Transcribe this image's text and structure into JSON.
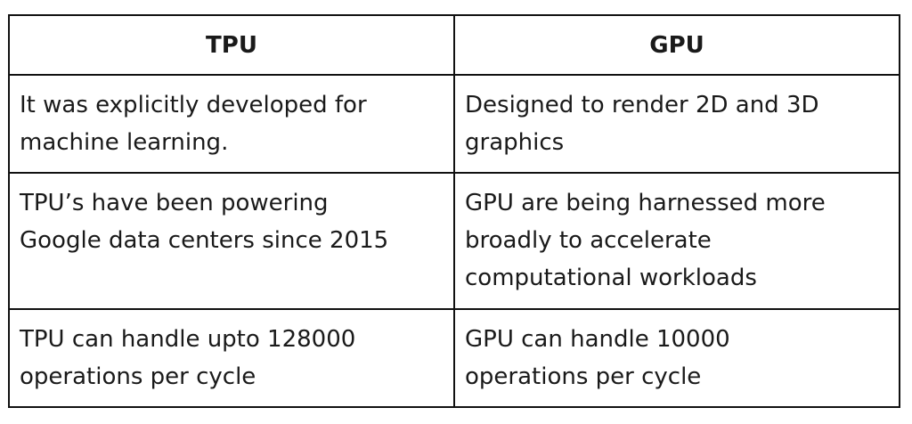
{
  "table": {
    "headers": [
      "TPU",
      "GPU"
    ],
    "rows": [
      [
        "It was explicitly developed for\nmachine learning.",
        "Designed to render 2D and 3D\ngraphics"
      ],
      [
        "TPU’s have been powering\nGoogle data centers since 2015",
        "GPU are being harnessed more\nbroadly to accelerate\ncomputational workloads"
      ],
      [
        "TPU can handle upto 128000\noperations per cycle",
        "GPU can handle 10000\noperations per cycle"
      ]
    ]
  }
}
